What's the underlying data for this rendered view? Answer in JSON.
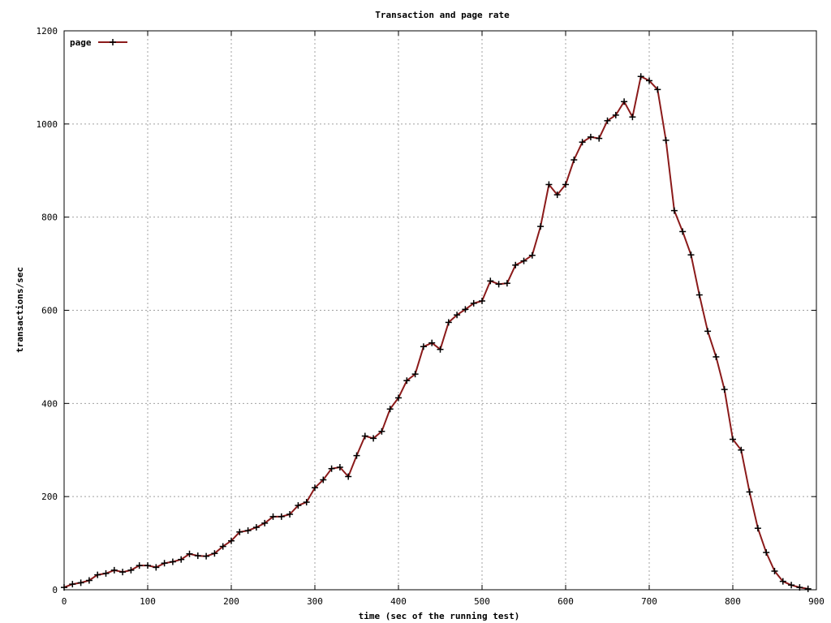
{
  "chart_data": {
    "type": "line",
    "title": "Transaction and page rate",
    "xlabel": "time (sec of the running test)",
    "ylabel": "transactions/sec",
    "xlim": [
      0,
      900
    ],
    "ylim": [
      0,
      1200
    ],
    "xticks": [
      0,
      100,
      200,
      300,
      400,
      500,
      600,
      700,
      800,
      900
    ],
    "yticks": [
      0,
      200,
      400,
      600,
      800,
      1000,
      1200
    ],
    "grid": true,
    "legend_position": "top-left",
    "series": [
      {
        "name": "page",
        "color": "#8b1a1a",
        "marker": "plus",
        "x": [
          0,
          10,
          20,
          30,
          40,
          50,
          60,
          70,
          80,
          90,
          100,
          110,
          120,
          130,
          140,
          150,
          160,
          170,
          180,
          190,
          200,
          210,
          220,
          230,
          240,
          250,
          260,
          270,
          280,
          290,
          300,
          310,
          320,
          330,
          340,
          350,
          360,
          370,
          380,
          390,
          400,
          410,
          420,
          430,
          440,
          450,
          460,
          470,
          480,
          490,
          500,
          510,
          520,
          530,
          540,
          550,
          560,
          570,
          580,
          590,
          600,
          610,
          620,
          630,
          640,
          650,
          660,
          670,
          680,
          690,
          700,
          710,
          720,
          730,
          740,
          750,
          760,
          770,
          780,
          790,
          800,
          810,
          820,
          830,
          840,
          850,
          860,
          870,
          880,
          890
        ],
        "y": [
          5,
          12,
          15,
          20,
          32,
          35,
          42,
          38,
          42,
          52,
          52,
          48,
          57,
          60,
          65,
          77,
          73,
          72,
          78,
          93,
          105,
          124,
          127,
          134,
          143,
          157,
          157,
          162,
          181,
          188,
          219,
          236,
          260,
          263,
          243,
          288,
          330,
          325,
          340,
          388,
          412,
          449,
          463,
          522,
          530,
          516,
          574,
          590,
          602,
          615,
          620,
          663,
          656,
          658,
          697,
          706,
          718,
          780,
          870,
          848,
          870,
          923,
          961,
          972,
          969,
          1007,
          1019,
          1048,
          1015,
          1102,
          1093,
          1074,
          965,
          814,
          769,
          719,
          633,
          555,
          500,
          430,
          323,
          300,
          210,
          132,
          80,
          40,
          18,
          10,
          5,
          2
        ]
      }
    ]
  }
}
